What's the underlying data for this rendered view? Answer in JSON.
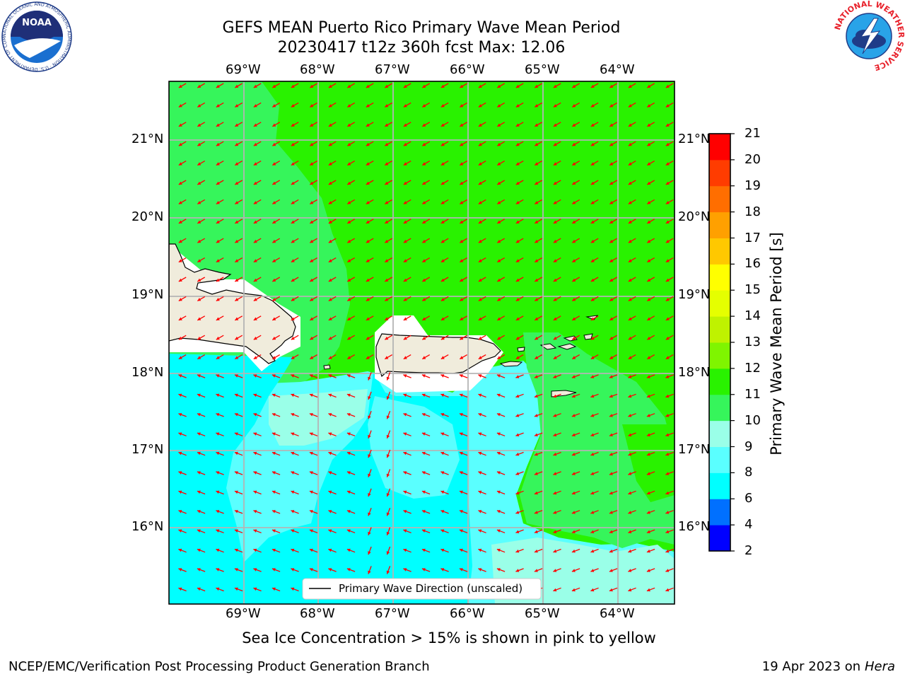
{
  "header": {
    "title_line1": "GEFS MEAN Puerto Rico Primary Wave Mean Period",
    "title_line2": "20230417 t12z 360h fcst   Max: 12.06"
  },
  "logos": {
    "noaa_text": "NOAA",
    "noaa_ring": "NATIONAL OCEANIC AND ATMOSPHERIC ADMINISTRATION · U.S. DEPARTMENT OF COMMERCE",
    "nws_ring": "NATIONAL WEATHER SERVICE"
  },
  "map": {
    "lon_labels": [
      "69°W",
      "68°W",
      "67°W",
      "66°W",
      "65°W",
      "64°W"
    ],
    "lat_labels": [
      "21°N",
      "20°N",
      "19°N",
      "18°N",
      "17°N",
      "16°N"
    ],
    "legend_label": "Primary Wave Direction (unscaled)",
    "arrow_color": "#ff0000",
    "land_color": "#f0ecdc",
    "regions": {
      "north_period_s": 11.5,
      "west_upper_period_s": 10.5,
      "south_channel_period_s": 7.5,
      "south_light_period_s": 8.5,
      "southeast_period_s": 10.5
    }
  },
  "colorbar": {
    "label": "Primary Wave Mean Period [s]",
    "ticks": [
      "2",
      "4",
      "6",
      "8",
      "9",
      "10",
      "11",
      "12",
      "13",
      "14",
      "15",
      "16",
      "17",
      "18",
      "19",
      "20",
      "21"
    ],
    "colors": [
      "#0000ff",
      "#0070ff",
      "#00ffff",
      "#5affff",
      "#9affe8",
      "#36f55b",
      "#29f200",
      "#7ff500",
      "#bff200",
      "#e5ff00",
      "#ffff00",
      "#ffc800",
      "#ffa000",
      "#ff6e00",
      "#ff3c00",
      "#ff0000"
    ]
  },
  "footer": {
    "note": "Sea Ice Concentration > 15% is shown in pink to yellow",
    "branch": "NCEP/EMC/Verification Post Processing Product Generation Branch",
    "date_prefix": "19 Apr 2023 on ",
    "date_host": "Hera"
  }
}
